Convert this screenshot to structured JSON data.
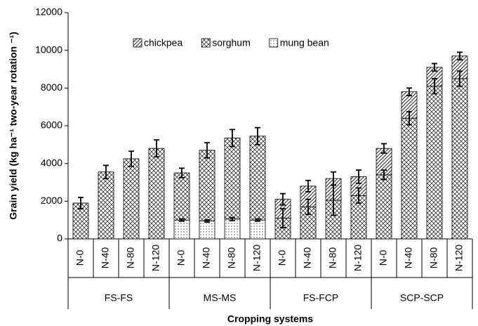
{
  "chart_data": {
    "type": "stacked-bar",
    "ylabel": "Grain yield (kg ha⁻¹ two-year rotation ⁻¹)",
    "xlabel": "Cropping systems",
    "groups": [
      "FS-FS",
      "MS-MS",
      "FS-FCP",
      "SCP-SCP"
    ],
    "categories": [
      "N-0",
      "N-40",
      "N-80",
      "N-120",
      "N-0",
      "N-40",
      "N-80",
      "N-120",
      "N-0",
      "N-40",
      "N-80",
      "N-120",
      "N-0",
      "N-40",
      "N-80",
      "N-120"
    ],
    "ylim": [
      0,
      12000
    ],
    "yticks": [
      0,
      2000,
      4000,
      6000,
      8000,
      10000,
      12000
    ],
    "legend": "top",
    "stack_order": [
      2,
      1,
      0
    ],
    "series": [
      {
        "name": "chickpea",
        "color": "#000000",
        "pattern": "diagonal",
        "values": [
          null,
          null,
          null,
          null,
          null,
          null,
          null,
          null,
          1000,
          1100,
          1150,
          1000,
          1400,
          1400,
          1000,
          1200
        ],
        "errors": [
          null,
          null,
          null,
          null,
          null,
          null,
          null,
          null,
          300,
          300,
          350,
          350,
          250,
          200,
          200,
          200
        ]
      },
      {
        "name": "sorghum",
        "color": "#000000",
        "pattern": "crosshatch",
        "values": [
          1900,
          3550,
          4250,
          4800,
          2500,
          3750,
          4300,
          4450,
          1100,
          1700,
          2050,
          2300,
          3400,
          6400,
          8100,
          8500
        ],
        "errors": [
          300,
          350,
          400,
          450,
          250,
          400,
          450,
          450,
          500,
          400,
          800,
          400,
          250,
          350,
          400,
          400
        ]
      },
      {
        "name": "mung bean",
        "color": "#000000",
        "pattern": "dots",
        "values": [
          null,
          null,
          null,
          null,
          1000,
          950,
          1050,
          1000,
          null,
          null,
          null,
          null,
          null,
          null,
          null,
          null
        ],
        "errors": [
          null,
          null,
          null,
          null,
          60,
          60,
          80,
          60,
          null,
          null,
          null,
          null,
          null,
          null,
          null,
          null
        ]
      }
    ]
  }
}
